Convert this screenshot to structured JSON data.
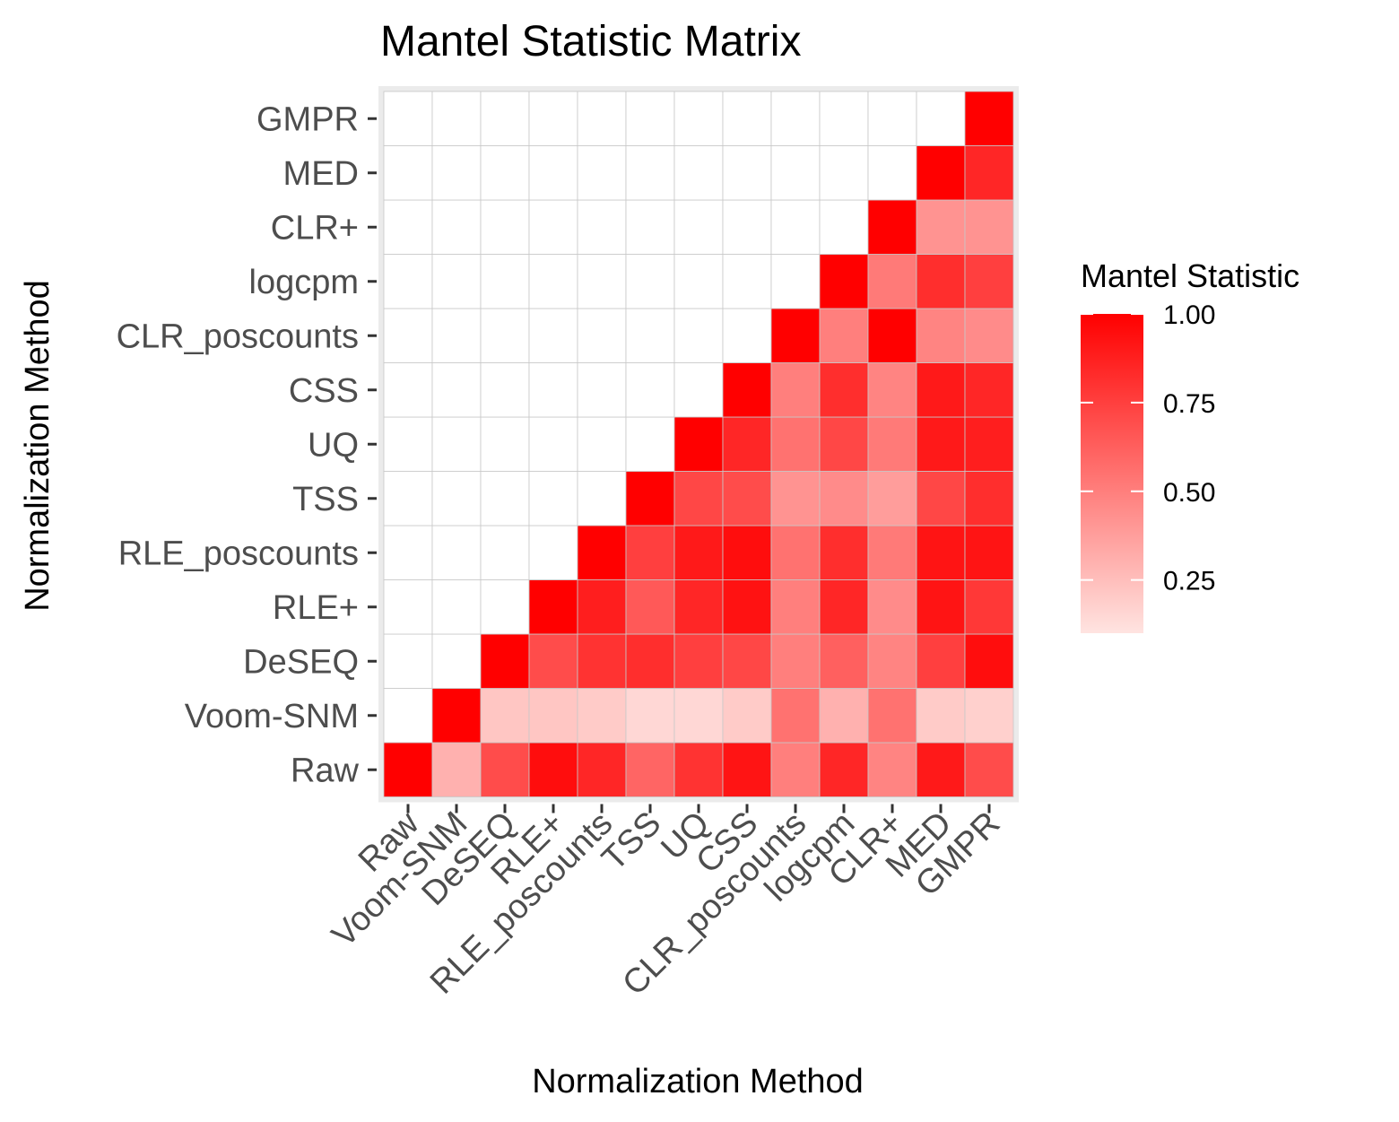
{
  "chart_data": {
    "type": "heatmap",
    "title": "Mantel Statistic Matrix",
    "xlabel": "Normalization Method",
    "ylabel": "Normalization Method",
    "x": [
      "Raw",
      "Voom-SNM",
      "DeSEQ",
      "RLE+",
      "RLE_poscounts",
      "TSS",
      "UQ",
      "CSS",
      "CLR_poscounts",
      "logcpm",
      "CLR+",
      "MED",
      "GMPR"
    ],
    "y": [
      "Raw",
      "Voom-SNM",
      "DeSEQ",
      "RLE+",
      "RLE_poscounts",
      "TSS",
      "UQ",
      "CSS",
      "CLR_poscounts",
      "logcpm",
      "CLR+",
      "MED",
      "GMPR"
    ],
    "values": [
      [
        1.0,
        0.3,
        0.7,
        0.95,
        0.85,
        0.6,
        0.8,
        0.92,
        0.5,
        0.85,
        0.48,
        0.9,
        0.7
      ],
      [
        null,
        1.0,
        0.22,
        0.22,
        0.2,
        0.15,
        0.15,
        0.2,
        0.55,
        0.3,
        0.55,
        0.2,
        0.18
      ],
      [
        null,
        null,
        1.0,
        0.7,
        0.8,
        0.82,
        0.75,
        0.72,
        0.5,
        0.62,
        0.48,
        0.75,
        0.95
      ],
      [
        null,
        null,
        null,
        1.0,
        0.88,
        0.65,
        0.85,
        0.93,
        0.5,
        0.85,
        0.45,
        0.92,
        0.78
      ],
      [
        null,
        null,
        null,
        null,
        1.0,
        0.75,
        0.9,
        0.95,
        0.55,
        0.82,
        0.52,
        0.92,
        0.92
      ],
      [
        null,
        null,
        null,
        null,
        null,
        1.0,
        0.72,
        0.7,
        0.42,
        0.45,
        0.38,
        0.72,
        0.82
      ],
      [
        null,
        null,
        null,
        null,
        null,
        null,
        1.0,
        0.85,
        0.55,
        0.72,
        0.52,
        0.9,
        0.88
      ],
      [
        null,
        null,
        null,
        null,
        null,
        null,
        null,
        1.0,
        0.5,
        0.82,
        0.48,
        0.9,
        0.85
      ],
      [
        null,
        null,
        null,
        null,
        null,
        null,
        null,
        null,
        1.0,
        0.5,
        1.0,
        0.48,
        0.45
      ],
      [
        null,
        null,
        null,
        null,
        null,
        null,
        null,
        null,
        null,
        1.0,
        0.52,
        0.82,
        0.75
      ],
      [
        null,
        null,
        null,
        null,
        null,
        null,
        null,
        null,
        null,
        null,
        1.0,
        0.42,
        0.42
      ],
      [
        null,
        null,
        null,
        null,
        null,
        null,
        null,
        null,
        null,
        null,
        null,
        1.0,
        0.85
      ],
      [
        null,
        null,
        null,
        null,
        null,
        null,
        null,
        null,
        null,
        null,
        null,
        null,
        1.0
      ]
    ],
    "color_scale": {
      "low": "#ffe4e1",
      "high": "#ff0000",
      "range": [
        0.1,
        1.0
      ]
    },
    "legend": {
      "title": "Mantel Statistic",
      "breaks": [
        1.0,
        0.75,
        0.5,
        0.25
      ],
      "labels": [
        "1.00",
        "0.75",
        "0.50",
        "0.25"
      ],
      "placement": "right"
    },
    "panel_background": "#ebebeb",
    "grid": true
  }
}
